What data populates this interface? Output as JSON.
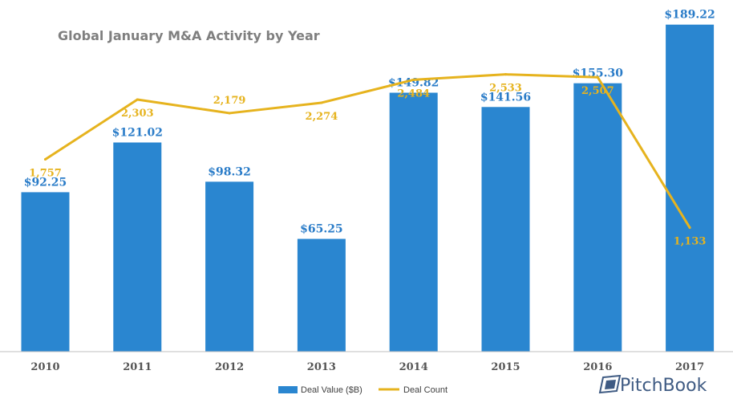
{
  "chart_data": {
    "type": "bar",
    "title": "Global January M&A Activity by Year",
    "categories": [
      "2010",
      "2011",
      "2012",
      "2013",
      "2014",
      "2015",
      "2016",
      "2017"
    ],
    "series": [
      {
        "name": "Deal Value ($B)",
        "type": "bar",
        "axis": "left",
        "values": [
          92.25,
          121.02,
          98.32,
          65.25,
          149.82,
          141.56,
          155.3,
          189.22
        ],
        "labels": [
          "$92.25",
          "$121.02",
          "$98.32",
          "$65.25",
          "$149.82",
          "$141.56",
          "$155.30",
          "$189.22"
        ],
        "color": "#2a86d0"
      },
      {
        "name": "Deal Count",
        "type": "line",
        "axis": "right",
        "values": [
          1757,
          2303,
          2179,
          2274,
          2484,
          2533,
          2507,
          1133
        ],
        "labels": [
          "1,757",
          "2,303",
          "2,179",
          "2,274",
          "2,484",
          "2,533",
          "2,507",
          "1,133"
        ],
        "color": "#e6b31e"
      }
    ],
    "ylim_left": [
      0,
      190
    ],
    "ylim_right": [
      0,
      3000
    ],
    "grid": false,
    "legend": "bottom-center"
  },
  "branding": {
    "logo_text": "PitchBook"
  }
}
